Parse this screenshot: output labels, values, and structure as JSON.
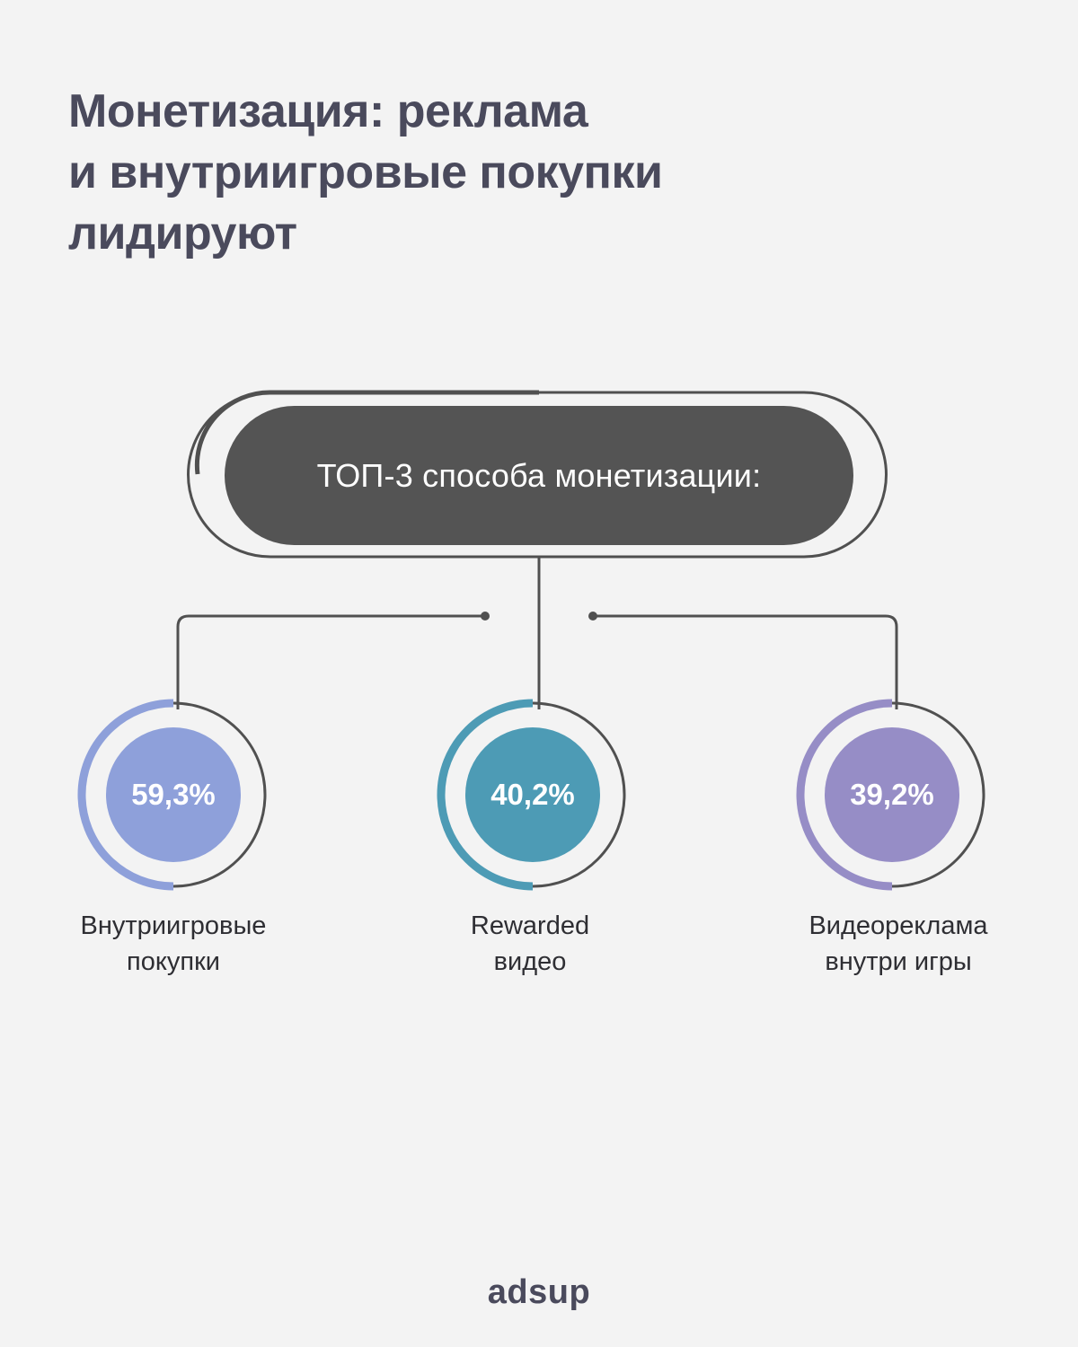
{
  "title": {
    "line1": "Монетизация: реклама",
    "line2": "и внутриигровые покупки",
    "line3": "лидируют"
  },
  "header_box": "ТОП-3 способа монетизации:",
  "items": [
    {
      "value": "59,3%",
      "label_line1": "Внутриигровые",
      "label_line2": "покупки",
      "color": "#8ea0da",
      "share": 0.593
    },
    {
      "value": "40,2%",
      "label_line1": "Rewarded",
      "label_line2": "видео",
      "color": "#4d9bb5",
      "share": 0.402
    },
    {
      "value": "39,2%",
      "label_line1": "Видеореклама",
      "label_line2": "внутри игры",
      "color": "#968dc6",
      "share": 0.392
    }
  ],
  "logo": "adsup",
  "colors": {
    "background": "#f3f3f3",
    "pill": "#545454",
    "line": "#505050",
    "title": "#4a4a5c"
  }
}
